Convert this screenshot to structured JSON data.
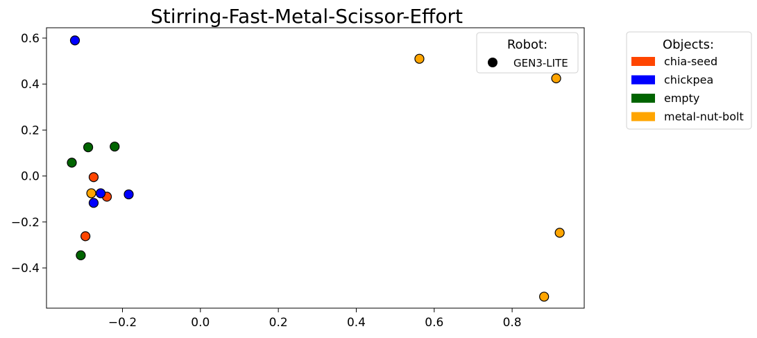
{
  "chart_data": {
    "type": "scatter",
    "title": "Stirring-Fast-Metal-Scissor-Effort",
    "xlabel": "",
    "ylabel": "",
    "xlim": [
      -0.395,
      0.985
    ],
    "ylim": [
      -0.575,
      0.645
    ],
    "xticks": [
      -0.2,
      0.0,
      0.2,
      0.4,
      0.6,
      0.8
    ],
    "xtick_labels": [
      "−0.2",
      "0.0",
      "0.2",
      "0.4",
      "0.6",
      "0.8"
    ],
    "yticks": [
      -0.4,
      -0.2,
      0.0,
      0.2,
      0.4,
      0.6
    ],
    "ytick_labels": [
      "−0.4",
      "−0.2",
      "0.0",
      "0.2",
      "0.4",
      "0.6"
    ],
    "grid": false,
    "series": [
      {
        "name": "chia-seed",
        "color": "#ff4500",
        "points": [
          [
            -0.274,
            -0.005
          ],
          [
            -0.24,
            -0.09
          ],
          [
            -0.295,
            -0.262
          ]
        ]
      },
      {
        "name": "chickpea",
        "color": "#0000ff",
        "points": [
          [
            -0.322,
            0.59
          ],
          [
            -0.256,
            -0.075
          ],
          [
            -0.184,
            -0.08
          ],
          [
            -0.274,
            -0.117
          ]
        ]
      },
      {
        "name": "empty",
        "color": "#006400",
        "points": [
          [
            -0.33,
            0.058
          ],
          [
            -0.288,
            0.125
          ],
          [
            -0.22,
            0.128
          ],
          [
            -0.307,
            -0.345
          ]
        ]
      },
      {
        "name": "metal-nut-bolt",
        "color": "#ffa500",
        "points": [
          [
            0.562,
            0.51
          ],
          [
            0.913,
            0.425
          ],
          [
            0.922,
            -0.247
          ],
          [
            0.882,
            -0.525
          ],
          [
            -0.28,
            -0.075
          ]
        ]
      }
    ],
    "extra_points": [
      {
        "color": "#ffa500",
        "x": -0.28,
        "y": -0.075
      }
    ],
    "legend_robot": {
      "title": "Robot:",
      "entries": [
        {
          "label": "GEN3-LITE",
          "marker": "circle",
          "color": "#000000"
        }
      ],
      "placement": "top-right"
    },
    "legend_objects": {
      "title": "Objects:",
      "entries": [
        {
          "label": "chia-seed",
          "color": "#ff4500"
        },
        {
          "label": "chickpea",
          "color": "#0000ff"
        },
        {
          "label": "empty",
          "color": "#006400"
        },
        {
          "label": "metal-nut-bolt",
          "color": "#ffa500"
        }
      ],
      "placement": "outside-right"
    }
  }
}
